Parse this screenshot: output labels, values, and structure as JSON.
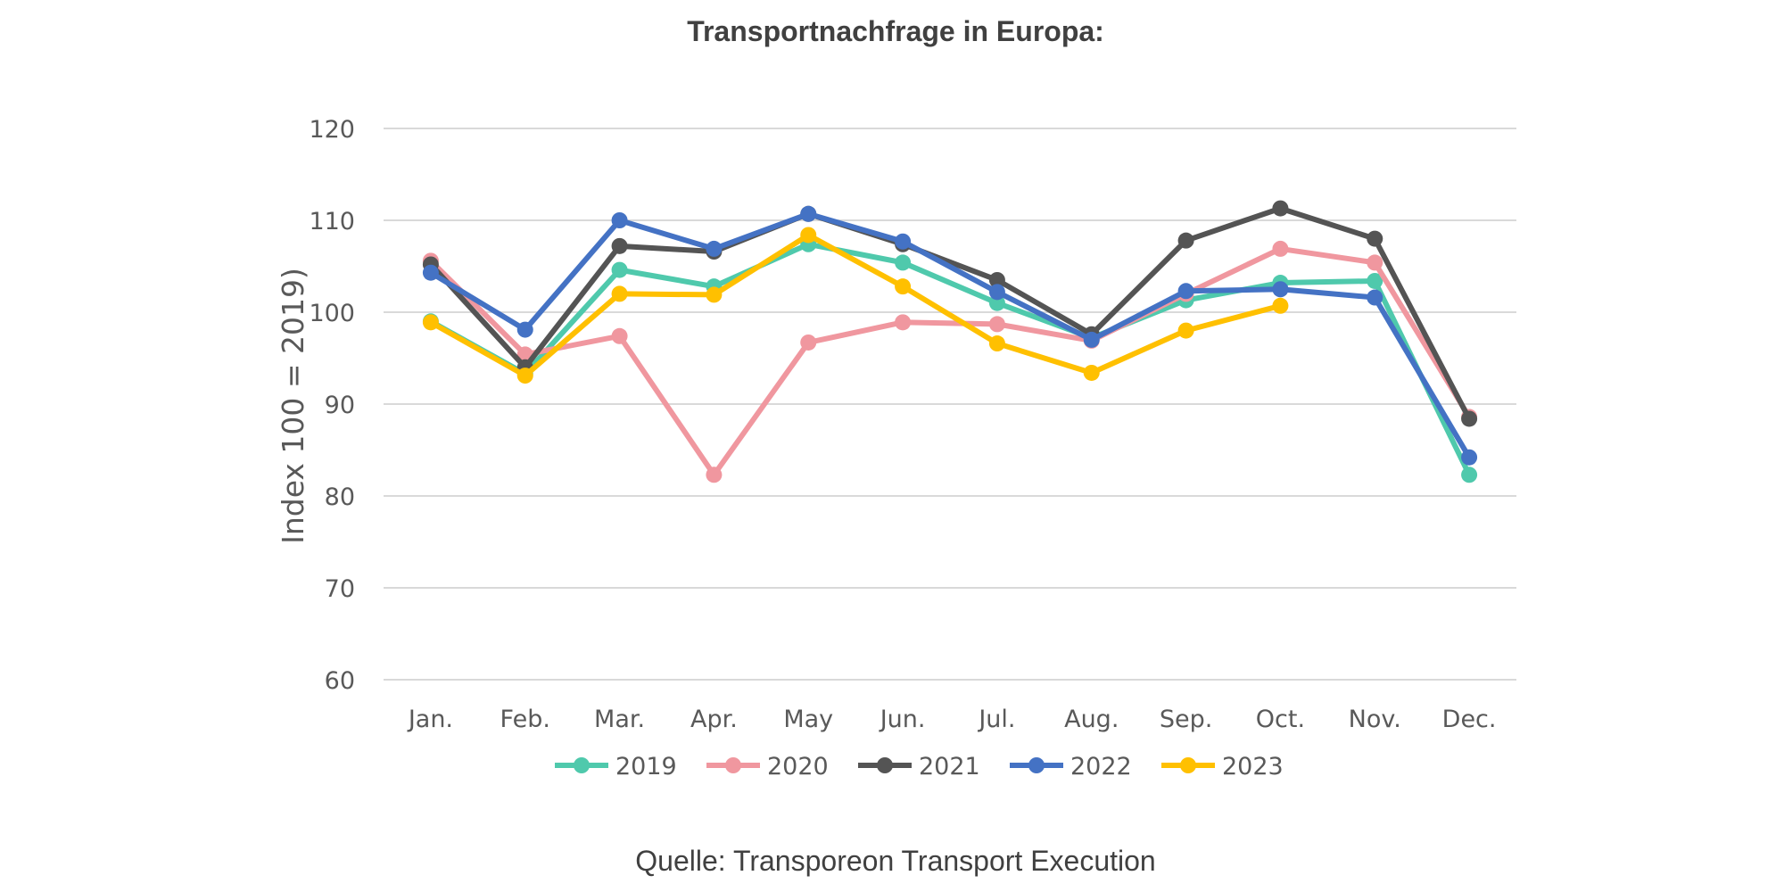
{
  "chart_data": {
    "type": "line",
    "title": "Transportnachfrage in Europa:",
    "ylabel": "Index 100 = 2019)",
    "xlabel": "",
    "source": "Quelle: Transporeon Transport Execution",
    "ylim": [
      60,
      120
    ],
    "yticks": [
      60,
      70,
      80,
      90,
      100,
      110,
      120
    ],
    "grid": true,
    "legend_position": "bottom",
    "categories": [
      "Jan.",
      "Feb.",
      "Mar.",
      "Apr.",
      "May",
      "Jun.",
      "Jul.",
      "Aug.",
      "Sep.",
      "Oct.",
      "Nov.",
      "Dec."
    ],
    "series": [
      {
        "name": "2019",
        "color": "#4fc9ac",
        "values": [
          99.0,
          93.3,
          104.6,
          102.8,
          107.4,
          105.4,
          101.0,
          97.2,
          101.3,
          103.2,
          103.4,
          82.3
        ]
      },
      {
        "name": "2020",
        "color": "#f0979f",
        "values": [
          105.6,
          95.4,
          97.4,
          82.3,
          96.7,
          98.9,
          98.7,
          96.9,
          102.0,
          106.9,
          105.4,
          88.6
        ]
      },
      {
        "name": "2021",
        "color": "#545454",
        "values": [
          105.2,
          94.0,
          107.2,
          106.6,
          110.7,
          107.4,
          103.5,
          97.6,
          107.8,
          111.3,
          108.0,
          88.4
        ]
      },
      {
        "name": "2022",
        "color": "#4472c4",
        "values": [
          104.3,
          98.1,
          110.0,
          106.9,
          110.7,
          107.7,
          102.2,
          97.0,
          102.3,
          102.5,
          101.6,
          84.2
        ]
      },
      {
        "name": "2023",
        "color": "#ffc000",
        "values": [
          98.9,
          93.1,
          102.0,
          101.9,
          108.4,
          102.8,
          96.6,
          93.4,
          98.0,
          100.7,
          null,
          null
        ]
      }
    ]
  }
}
